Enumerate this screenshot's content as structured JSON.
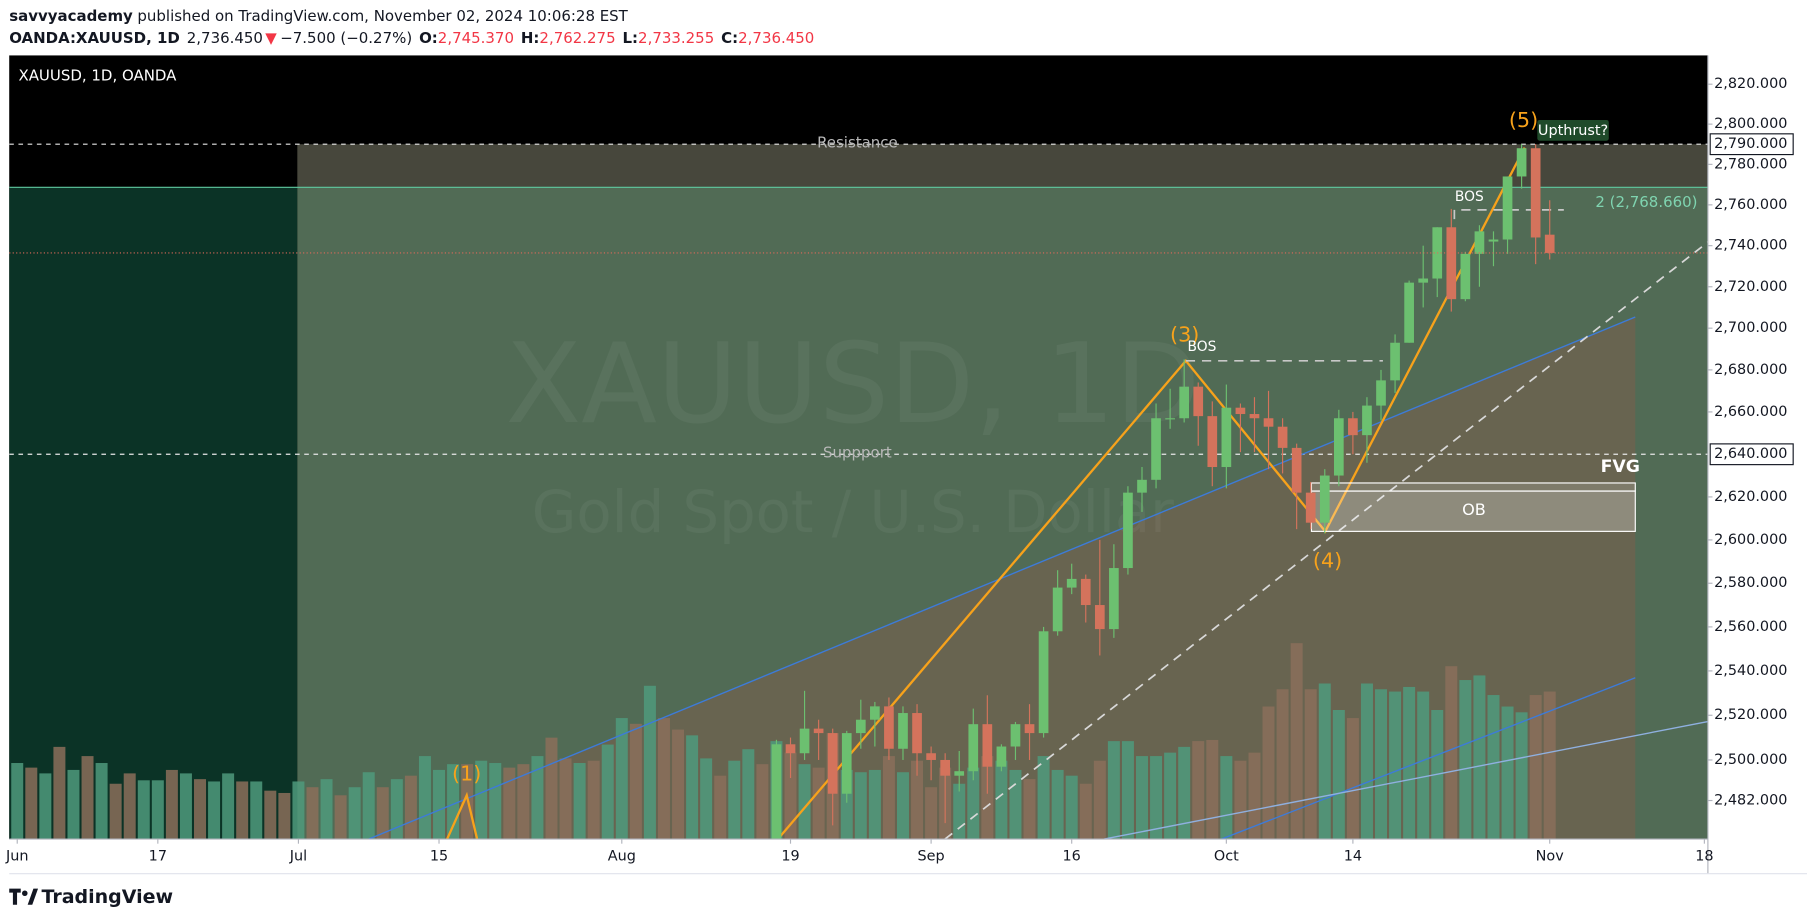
{
  "header": {
    "author": "savvyacademy",
    "published": "published on TradingView.com, November 02, 2024 10:06:28 EST",
    "symbol": "OANDA:XAUUSD, 1D",
    "last": "2,736.450",
    "change_arrow": "▼",
    "change": "−7.500 (−0.27%)",
    "ohlc_labels": [
      "O:",
      "H:",
      "L:",
      "C:"
    ],
    "ohlc_values": [
      "2,745.370",
      "2,762.275",
      "2,733.255",
      "2,736.450"
    ]
  },
  "footer": {
    "brand": "TradingView"
  },
  "chart_data": {
    "type": "candlestick",
    "title": "XAUUSD, 1D, OANDA",
    "watermark": "XAUUSD, 1D",
    "watermark_subtitle": "Gold Spot / U.S. Dollar",
    "log_scale": true,
    "up_color": "#6cc070",
    "down_color": "#d4735c",
    "categories": [
      "Jun 3",
      "Jun 4",
      "Jun 5",
      "Jun 6",
      "Jun 7",
      "Jun 10",
      "Jun 11",
      "Jun 12",
      "Jun 13",
      "Jun 14",
      "Jun 17",
      "Jun 18",
      "Jun 19",
      "Jun 20",
      "Jun 21",
      "Jun 24",
      "Jun 25",
      "Jun 26",
      "Jun 27",
      "Jun 28",
      "Jul 1",
      "Jul 2",
      "Jul 3",
      "Jul 4",
      "Jul 5",
      "Jul 8",
      "Jul 9",
      "Jul 10",
      "Jul 11",
      "Jul 12",
      "Jul 15",
      "Jul 16",
      "Jul 17",
      "Jul 18",
      "Jul 19",
      "Jul 22",
      "Jul 23",
      "Jul 24",
      "Jul 25",
      "Jul 26",
      "Jul 29",
      "Jul 30",
      "Jul 31",
      "Aug 1",
      "Aug 2",
      "Aug 5",
      "Aug 6",
      "Aug 7",
      "Aug 8",
      "Aug 9",
      "Aug 12",
      "Aug 13",
      "Aug 14",
      "Aug 15",
      "Aug 16",
      "Aug 19",
      "Aug 20",
      "Aug 21",
      "Aug 22",
      "Aug 23",
      "Aug 26",
      "Aug 27",
      "Aug 28",
      "Aug 29",
      "Aug 30",
      "Sep 2",
      "Sep 3",
      "Sep 4",
      "Sep 5",
      "Sep 6",
      "Sep 9",
      "Sep 10",
      "Sep 11",
      "Sep 12",
      "Sep 13",
      "Sep 16",
      "Sep 17",
      "Sep 18",
      "Sep 19",
      "Sep 20",
      "Sep 23",
      "Sep 24",
      "Sep 25",
      "Sep 26",
      "Sep 27",
      "Sep 30",
      "Oct 1",
      "Oct 2",
      "Oct 3",
      "Oct 4",
      "Oct 7",
      "Oct 8",
      "Oct 9",
      "Oct 10",
      "Oct 11",
      "Oct 14",
      "Oct 15",
      "Oct 16",
      "Oct 17",
      "Oct 18",
      "Oct 21",
      "Oct 22",
      "Oct 23",
      "Oct 24",
      "Oct 25",
      "Oct 28",
      "Oct 29",
      "Oct 30",
      "Oct 31",
      "Nov 1"
    ],
    "open": [
      null,
      null,
      null,
      null,
      null,
      null,
      null,
      null,
      null,
      null,
      null,
      null,
      null,
      null,
      null,
      null,
      null,
      null,
      null,
      null,
      null,
      null,
      null,
      null,
      null,
      null,
      null,
      null,
      null,
      null,
      null,
      null,
      null,
      null,
      null,
      null,
      null,
      null,
      null,
      null,
      null,
      null,
      null,
      null,
      null,
      null,
      null,
      null,
      null,
      null,
      null,
      null,
      null,
      null,
      2456,
      2507,
      2503,
      2514,
      2512,
      2485,
      2512,
      2518,
      2524,
      2505,
      2521,
      2503,
      2500,
      2493,
      2495,
      2516,
      2497,
      2506,
      2516,
      2512,
      2558,
      2578,
      2582,
      2570,
      2559,
      2587,
      2622,
      2628,
      2657,
      2657,
      2672,
      2658,
      2634,
      2662,
      2659,
      2657,
      2653,
      2643,
      2622,
      2608,
      2630,
      2657,
      2649,
      2663,
      2675,
      2693,
      2722,
      2724,
      2749,
      2714,
      2736,
      2742,
      2743,
      2774,
      2788,
      2745.37
    ],
    "high": [
      null,
      null,
      null,
      null,
      null,
      null,
      null,
      null,
      null,
      null,
      null,
      null,
      null,
      null,
      null,
      null,
      null,
      null,
      null,
      null,
      null,
      null,
      null,
      null,
      null,
      null,
      null,
      null,
      null,
      null,
      null,
      null,
      null,
      null,
      null,
      null,
      null,
      null,
      null,
      null,
      null,
      null,
      null,
      null,
      null,
      null,
      null,
      null,
      null,
      null,
      null,
      null,
      null,
      null,
      2509,
      2510,
      2531,
      2518,
      2514,
      2513,
      2527,
      2526,
      2528,
      2524,
      2525,
      2506,
      2503,
      2504,
      2523,
      2529,
      2507,
      2517,
      2525,
      2560,
      2586,
      2589,
      2584,
      2600,
      2598,
      2625,
      2634,
      2664,
      2671,
      2685,
      2674,
      2665,
      2673,
      2664,
      2667,
      2670,
      2657,
      2645,
      2627,
      2633,
      2661,
      2660,
      2667,
      2680,
      2697,
      2723,
      2740,
      2749,
      2758,
      2737,
      2750,
      2747,
      2774,
      2790,
      2790,
      2762.275
    ],
    "low": [
      null,
      null,
      null,
      null,
      null,
      null,
      null,
      null,
      null,
      null,
      null,
      null,
      null,
      null,
      null,
      null,
      null,
      null,
      null,
      null,
      null,
      null,
      null,
      null,
      null,
      null,
      null,
      null,
      null,
      null,
      null,
      null,
      null,
      null,
      null,
      null,
      null,
      null,
      null,
      null,
      null,
      null,
      null,
      null,
      null,
      null,
      null,
      null,
      null,
      null,
      null,
      null,
      null,
      null,
      2453,
      2492,
      2500,
      2500,
      2471,
      2481,
      2505,
      2506,
      2500,
      2500,
      2493,
      2491,
      2472,
      2486,
      2491,
      2485,
      2495,
      2500,
      2500,
      2510,
      2556,
      2575,
      2562,
      2547,
      2555,
      2584,
      2613,
      2624,
      2652,
      2655,
      2644,
      2625,
      2624,
      2641,
      2641,
      2633,
      2631,
      2605,
      2605,
      2603,
      2625,
      2640,
      2636,
      2656,
      2669,
      2693,
      2710,
      2715,
      2708,
      2713,
      2720,
      2730,
      2736,
      2768,
      2731,
      2733.255
    ],
    "close": [
      null,
      null,
      null,
      null,
      null,
      null,
      null,
      null,
      null,
      null,
      null,
      null,
      null,
      null,
      null,
      null,
      null,
      null,
      null,
      null,
      null,
      null,
      null,
      null,
      null,
      null,
      null,
      null,
      null,
      null,
      null,
      null,
      null,
      null,
      null,
      null,
      null,
      null,
      null,
      null,
      null,
      null,
      null,
      null,
      null,
      null,
      null,
      null,
      null,
      null,
      null,
      null,
      null,
      null,
      2507,
      2503,
      2514,
      2512,
      2485,
      2512,
      2518,
      2524,
      2505,
      2521,
      2503,
      2500,
      2493,
      2495,
      2516,
      2497,
      2506,
      2516,
      2512,
      2558,
      2578,
      2582,
      2570,
      2559,
      2587,
      2622,
      2628,
      2657,
      2657,
      2672,
      2658,
      2634,
      2662,
      2659,
      2657,
      2653,
      2643,
      2622,
      2608,
      2630,
      2657,
      2649,
      2663,
      2675,
      2693,
      2722,
      2724,
      2749,
      2714,
      2736,
      2747,
      2743,
      2774,
      2788,
      2744,
      2736.45
    ],
    "volume": {
      "up_color": "#4f9a7c",
      "down_color": "#8b6e5a",
      "values": [
        66,
        62,
        57,
        80,
        60,
        72,
        66,
        48,
        57,
        51,
        51,
        60,
        57,
        52,
        50,
        57,
        50,
        50,
        42,
        40,
        50,
        45,
        52,
        38,
        45,
        58,
        45,
        52,
        55,
        72,
        60,
        65,
        65,
        68,
        66,
        62,
        65,
        72,
        88,
        70,
        66,
        68,
        82,
        105,
        100,
        133,
        105,
        95,
        90,
        70,
        55,
        68,
        78,
        65,
        85,
        75,
        65,
        62,
        92,
        60,
        58,
        60,
        72,
        58,
        68,
        45,
        62,
        48,
        62,
        72,
        68,
        60,
        52,
        72,
        60,
        55,
        48,
        68,
        85,
        85,
        72,
        72,
        75,
        80,
        85,
        86,
        72,
        68,
        75,
        115,
        130,
        170,
        130,
        135,
        112,
        105,
        135,
        130,
        128,
        132,
        128,
        112,
        150,
        138,
        142,
        125,
        115,
        110,
        125,
        128
      ],
      "up": [
        true,
        false,
        true,
        false,
        true,
        false,
        true,
        false,
        false,
        true,
        true,
        false,
        true,
        false,
        true,
        true,
        false,
        true,
        false,
        false,
        true,
        false,
        true,
        false,
        true,
        true,
        false,
        true,
        false,
        true,
        true,
        true,
        false,
        true,
        true,
        false,
        false,
        true,
        false,
        false,
        true,
        false,
        true,
        true,
        false,
        true,
        false,
        false,
        true,
        true,
        false,
        true,
        true,
        false,
        true,
        false,
        true,
        false,
        false,
        true,
        true,
        true,
        false,
        true,
        false,
        false,
        false,
        true,
        true,
        false,
        true,
        true,
        false,
        true,
        true,
        true,
        false,
        false,
        true,
        true,
        true,
        true,
        true,
        true,
        false,
        false,
        true,
        false,
        false,
        false,
        false,
        false,
        false,
        true,
        true,
        false,
        true,
        true,
        true,
        true,
        true,
        true,
        false,
        true,
        true,
        true,
        true,
        true,
        false,
        false
      ]
    },
    "xlim": [
      -0.57,
      120.25
    ],
    "xticks": [
      {
        "value": 0,
        "label": "Jun"
      },
      {
        "value": 10,
        "label": "17"
      },
      {
        "value": 20,
        "label": "Jul"
      },
      {
        "value": 30,
        "label": "15"
      },
      {
        "value": 43,
        "label": "Aug"
      },
      {
        "value": 55,
        "label": "19"
      },
      {
        "value": 65,
        "label": "Sep"
      },
      {
        "value": 75,
        "label": "16"
      },
      {
        "value": 86,
        "label": "Oct"
      },
      {
        "value": 95,
        "label": "14"
      },
      {
        "value": 109,
        "label": "Nov"
      },
      {
        "value": 120,
        "label": "18"
      }
    ],
    "ylim": [
      2465,
      2834.5
    ],
    "yticks": [
      {
        "value": 2820,
        "label": "2,820.000"
      },
      {
        "value": 2800,
        "label": "2,800.000"
      },
      {
        "value": 2780,
        "label": "2,780.000"
      },
      {
        "value": 2760,
        "label": "2,760.000"
      },
      {
        "value": 2740,
        "label": "2,740.000"
      },
      {
        "value": 2720,
        "label": "2,720.000"
      },
      {
        "value": 2700,
        "label": "2,700.000"
      },
      {
        "value": 2680,
        "label": "2,680.000"
      },
      {
        "value": 2660,
        "label": "2,660.000"
      },
      {
        "value": 2620,
        "label": "2,620.000"
      },
      {
        "value": 2600,
        "label": "2,600.000"
      },
      {
        "value": 2580,
        "label": "2,580.000"
      },
      {
        "value": 2560,
        "label": "2,560.000"
      },
      {
        "value": 2540,
        "label": "2,540.000"
      },
      {
        "value": 2520,
        "label": "2,520.000"
      },
      {
        "value": 2500,
        "label": "2,500.000"
      },
      {
        "value": 2482,
        "label": "2,482.000"
      }
    ],
    "levels": [
      {
        "label": "Resistance",
        "value": 2790,
        "price_label": "2,790.000"
      },
      {
        "label": "Suppport",
        "value": 2640,
        "price_label": "2,640.000"
      }
    ],
    "fib_level": {
      "label": "2 (2,768.660)",
      "value": 2768.66
    },
    "annotations": {
      "waves": [
        "(1)",
        "(3)",
        "(4)",
        "(5)"
      ],
      "bos": [
        "BOS",
        "BOS"
      ],
      "ob": "OB",
      "fvg": "FVG",
      "upthrust": "Upthrust?"
    }
  }
}
